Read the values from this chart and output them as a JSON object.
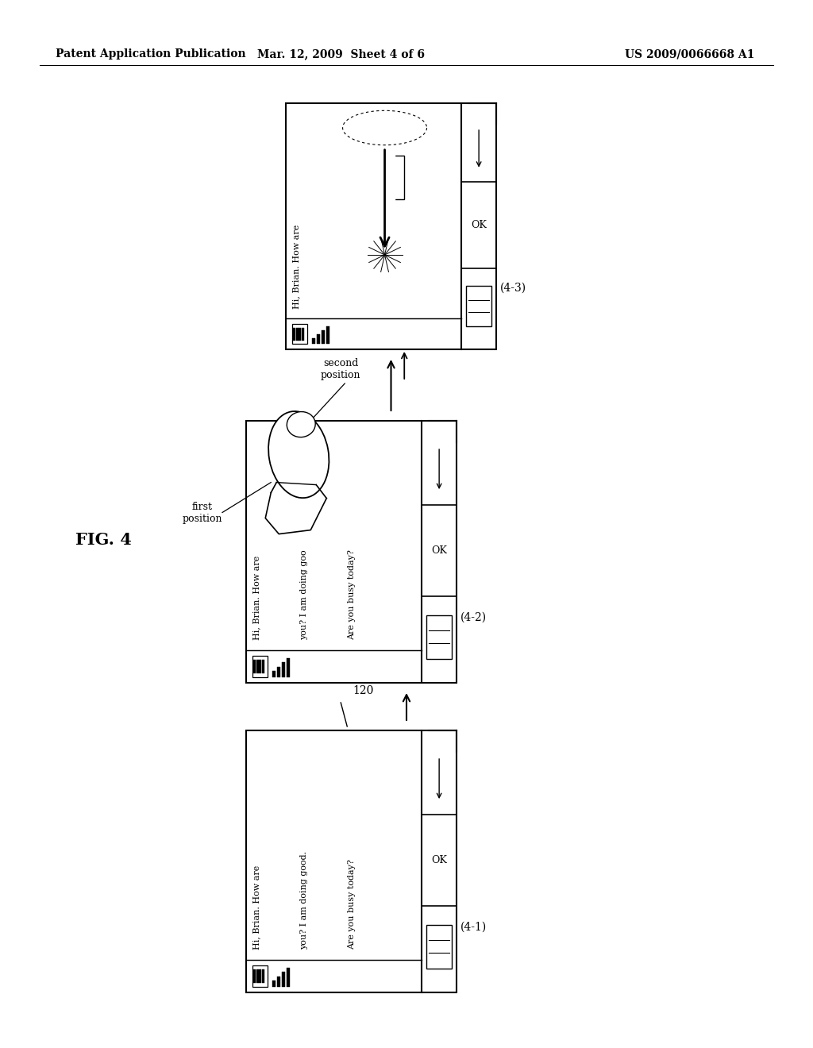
{
  "bg_color": "#ffffff",
  "header_left": "Patent Application Publication",
  "header_mid": "Mar. 12, 2009  Sheet 4 of 6",
  "header_right": "US 2009/0066668 A1",
  "fig_label": "FIG. 4",
  "phone1_label": "(4-1)",
  "phone2_label": "(4-2)",
  "phone3_label": "(4-3)",
  "ref_num": "120",
  "text_full": [
    "Hi, Brian. How are",
    "you? I am doing good.",
    "Are you busy today?"
  ],
  "text_partial": [
    "Hi, Brian. How are"
  ],
  "first_position": "first\nposition",
  "second_position": "second\nposition",
  "ok_text": "OK"
}
